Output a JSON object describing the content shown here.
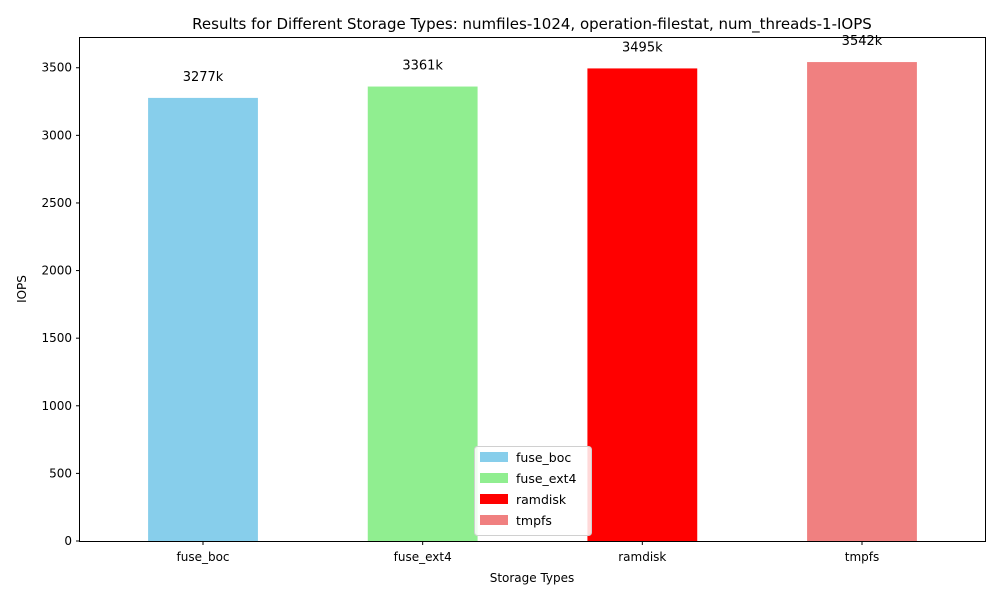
{
  "chart_data": {
    "type": "bar",
    "title": "Results for Different Storage Types: numfiles-1024, operation-filestat, num_threads-1-IOPS",
    "xlabel": "Storage Types",
    "ylabel": "IOPS",
    "categories": [
      "fuse_boc",
      "fuse_ext4",
      "ramdisk",
      "tmpfs"
    ],
    "values": [
      3277,
      3361,
      3495,
      3542
    ],
    "data_labels": [
      "3277k",
      "3361k",
      "3495k",
      "3542k"
    ],
    "colors": [
      "#87ceeb",
      "#90ee90",
      "#ff0000",
      "#f08080"
    ],
    "ylim": [
      0,
      3720
    ],
    "yticks": [
      0,
      500,
      1000,
      1500,
      2000,
      2500,
      3000,
      3500
    ],
    "grid": false,
    "legend": {
      "location": "lower-center",
      "entries": [
        "fuse_boc",
        "fuse_ext4",
        "ramdisk",
        "tmpfs"
      ]
    }
  }
}
